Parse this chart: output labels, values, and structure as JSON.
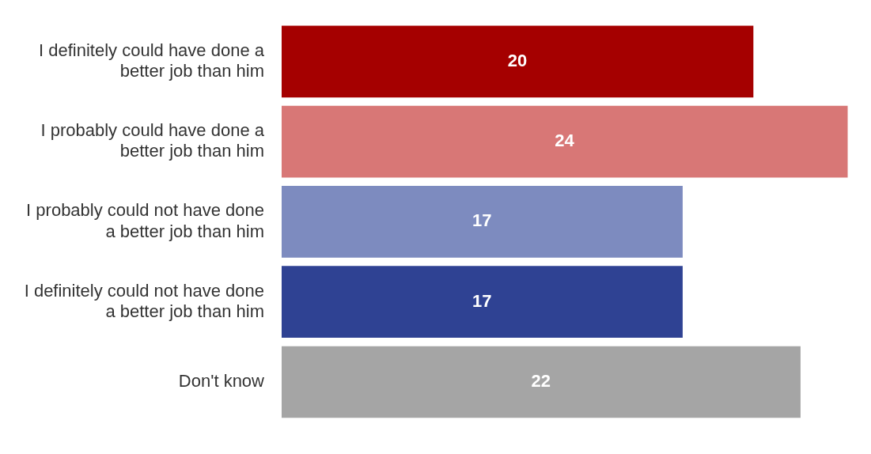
{
  "chart_data": {
    "type": "bar",
    "orientation": "horizontal",
    "categories": [
      "I definitely could have done a better job than him",
      "I probably could have done a better job than him",
      "I probably could not have done a better job than him",
      "I definitely could not have done a better job than him",
      "Don't know"
    ],
    "values": [
      20,
      24,
      17,
      17,
      22
    ],
    "colors": [
      "#a50000",
      "#d87776",
      "#7d8bbf",
      "#2f4293",
      "#a5a5a5"
    ],
    "data_labels": true,
    "tick_labels": "y"
  }
}
